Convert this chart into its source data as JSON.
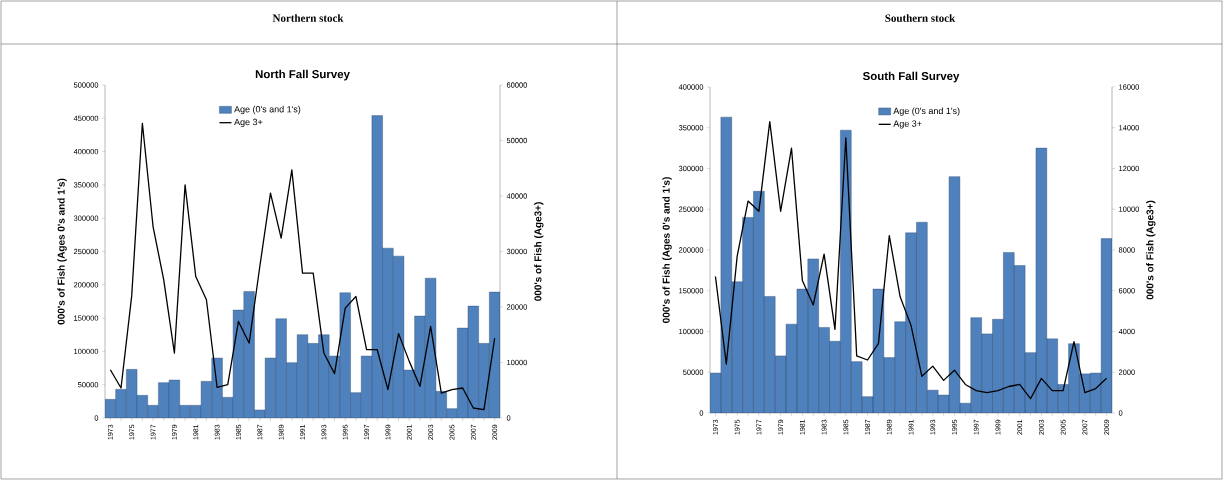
{
  "chart_data": [
    {
      "type": "bar",
      "subtitle": "Northern stock",
      "title": "North Fall Survey",
      "ylabel": "000's of Fish (Ages 0's and 1's)",
      "y2label": "000's of Fish (Age3+)",
      "categories": [
        "1973",
        null,
        "1975",
        null,
        "1977",
        null,
        "1979",
        null,
        "1981",
        null,
        "1983",
        null,
        "1985",
        null,
        "1987",
        null,
        "1989",
        null,
        "1991",
        null,
        "1993",
        null,
        "1995",
        null,
        "1997",
        null,
        "1999",
        null,
        "2001",
        null,
        "2003",
        null,
        "2005",
        null,
        "2007",
        null,
        "2009"
      ],
      "series": [
        {
          "name": "Age (0's and 1's)",
          "color": "#4f81bd",
          "values": [
            28000,
            43000,
            73000,
            34000,
            19000,
            53000,
            57000,
            19000,
            19000,
            55000,
            90000,
            31000,
            162000,
            190000,
            12000,
            90000,
            149000,
            83000,
            125000,
            112000,
            125000,
            93000,
            188000,
            38000,
            93000,
            454000,
            255000,
            243000,
            72000,
            153000,
            210000,
            40000,
            14000,
            135000,
            168000,
            112000,
            189000
          ]
        },
        {
          "name": "Age 3+",
          "type": "line",
          "axis": "y2",
          "color": "#000000",
          "values": [
            8700,
            5400,
            22000,
            53100,
            34500,
            24900,
            11700,
            42000,
            25500,
            21300,
            5500,
            6000,
            17400,
            13500,
            27300,
            40500,
            32400,
            44700,
            26100,
            26100,
            11700,
            8000,
            19800,
            21900,
            12300,
            12300,
            5100,
            15200,
            10200,
            5700,
            16500,
            4500,
            5100,
            5400,
            1800,
            1500,
            14400
          ]
        }
      ],
      "ylim": [
        0,
        500000
      ],
      "yticks": [
        0,
        50000,
        100000,
        150000,
        200000,
        250000,
        300000,
        350000,
        400000,
        450000,
        500000
      ],
      "y2lim": [
        0,
        60000
      ],
      "y2ticks": [
        0,
        10000,
        20000,
        30000,
        40000,
        50000,
        60000
      ],
      "legend": "top",
      "marker": "none"
    },
    {
      "type": "bar",
      "subtitle": "Southern stock",
      "title": "South Fall Survey",
      "ylabel": "000's of Fish (Ages 0's and 1's)",
      "y2label": "000's of Fish (Age3+)",
      "categories": [
        "1973",
        null,
        "1975",
        null,
        "1977",
        null,
        "1979",
        null,
        "1981",
        null,
        "1983",
        null,
        "1985",
        null,
        "1987",
        null,
        "1989",
        null,
        "1991",
        null,
        "1993",
        null,
        "1995",
        null,
        "1997",
        null,
        "1999",
        null,
        "2001",
        null,
        "2003",
        null,
        "2005",
        null,
        "2007",
        null,
        "2009"
      ],
      "series": [
        {
          "name": "Age (0's and 1's)",
          "color": "#4f81bd",
          "values": [
            49000,
            363000,
            161000,
            240000,
            272000,
            143000,
            70000,
            109000,
            152000,
            189000,
            105000,
            88000,
            347000,
            63000,
            20000,
            152000,
            68000,
            112000,
            221000,
            234000,
            28000,
            22000,
            290000,
            12000,
            117000,
            97000,
            115000,
            197000,
            181000,
            74000,
            325000,
            91000,
            35000,
            85000,
            48000,
            49000,
            214000
          ]
        },
        {
          "name": "Age 3+",
          "type": "line",
          "axis": "y2",
          "color": "#000000",
          "values": [
            6700,
            2400,
            7700,
            10400,
            9900,
            14300,
            9900,
            13000,
            6500,
            5300,
            7800,
            4100,
            13500,
            2800,
            2600,
            3400,
            8700,
            5700,
            4300,
            1800,
            2300,
            1600,
            2100,
            1400,
            1100,
            1000,
            1100,
            1300,
            1400,
            700,
            1700,
            1100,
            1100,
            3500,
            1000,
            1200,
            1700
          ]
        }
      ],
      "ylim": [
        0,
        400000
      ],
      "yticks": [
        0,
        50000,
        100000,
        150000,
        200000,
        250000,
        300000,
        350000,
        400000
      ],
      "y2lim": [
        0,
        16000
      ],
      "y2ticks": [
        0,
        2000,
        4000,
        6000,
        8000,
        10000,
        12000,
        14000,
        16000
      ],
      "legend": "top",
      "marker": "none"
    }
  ]
}
